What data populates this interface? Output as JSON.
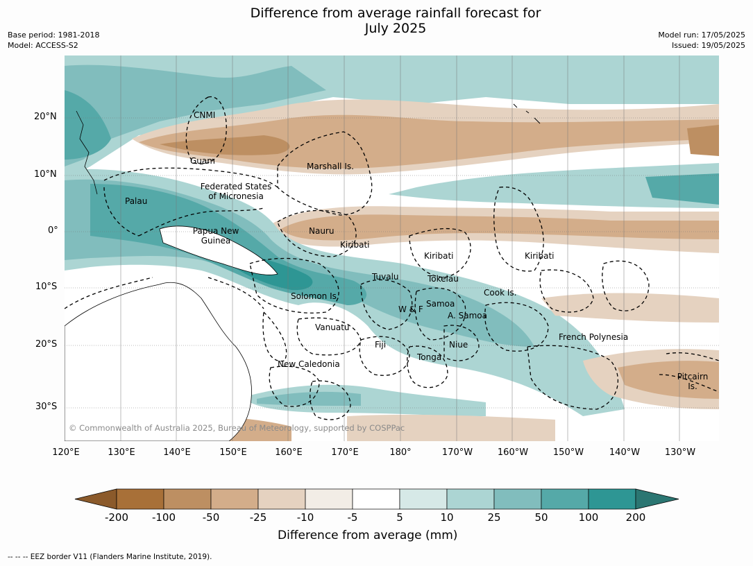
{
  "title": {
    "line1": "Difference from average rainfall forecast for",
    "line2": "July 2025"
  },
  "meta_left": {
    "base_period": "Base period: 1981-2018",
    "model": "Model: ACCESS-S2"
  },
  "meta_right": {
    "model_run": "Model run: 17/05/2025",
    "issued": "Issued: 19/05/2025"
  },
  "lat_labels": [
    "20°N",
    "10°N",
    "0°",
    "10°S",
    "20°S",
    "30°S"
  ],
  "lon_labels": [
    "120°E",
    "130°E",
    "140°E",
    "150°E",
    "160°E",
    "170°E",
    "180°",
    "170°W",
    "160°W",
    "150°W",
    "140°W",
    "130°W"
  ],
  "places": {
    "cnmi": "CNMI",
    "guam": "Guam",
    "marshall": "Marshall Is.",
    "fsm1": "Federated States",
    "fsm2": "of Micronesia",
    "palau": "Palau",
    "png1": "Papua New",
    "png2": "Guinea",
    "nauru": "Nauru",
    "kiribati_w": "Kiribati",
    "kiribati_c": "Kiribati",
    "kiribati_e": "Kiribati",
    "tuvalu": "Tuvalu",
    "tokelau": "Tokelau",
    "cook": "Cook Is.",
    "solomon": "Solomon Is.",
    "samoa": "Samoa",
    "wf": "W & F",
    "asamoa": "A. Samoa",
    "vanuatu": "Vanuatu",
    "fiji": "Fiji",
    "niue": "Niue",
    "tonga": "Tonga",
    "frenchpoly": "French Polynesia",
    "newcal": "New Caledonia",
    "pitcairn1": "Pitcairn",
    "pitcairn2": "Is."
  },
  "copyright": "© Commonwealth of Australia 2025, Bureau of Meteorology, supported by COSPPac",
  "colorbar": {
    "ticks": [
      "-200",
      "-100",
      "-50",
      "-25",
      "-10",
      "-5",
      "5",
      "10",
      "25",
      "50",
      "100",
      "200"
    ],
    "colors": [
      "#8b5a2b",
      "#a87038",
      "#bd8f62",
      "#d3ad8a",
      "#e5d2c0",
      "#f2ede6",
      "#ffffff",
      "#d6e9e7",
      "#acd5d3",
      "#81bdbd",
      "#55a9a8",
      "#2e9694",
      "#2b7672"
    ],
    "title": "Difference from average (mm)"
  },
  "footer": "--  --  -- EEZ border V11 (Flanders Marine Institute, 2019)."
}
